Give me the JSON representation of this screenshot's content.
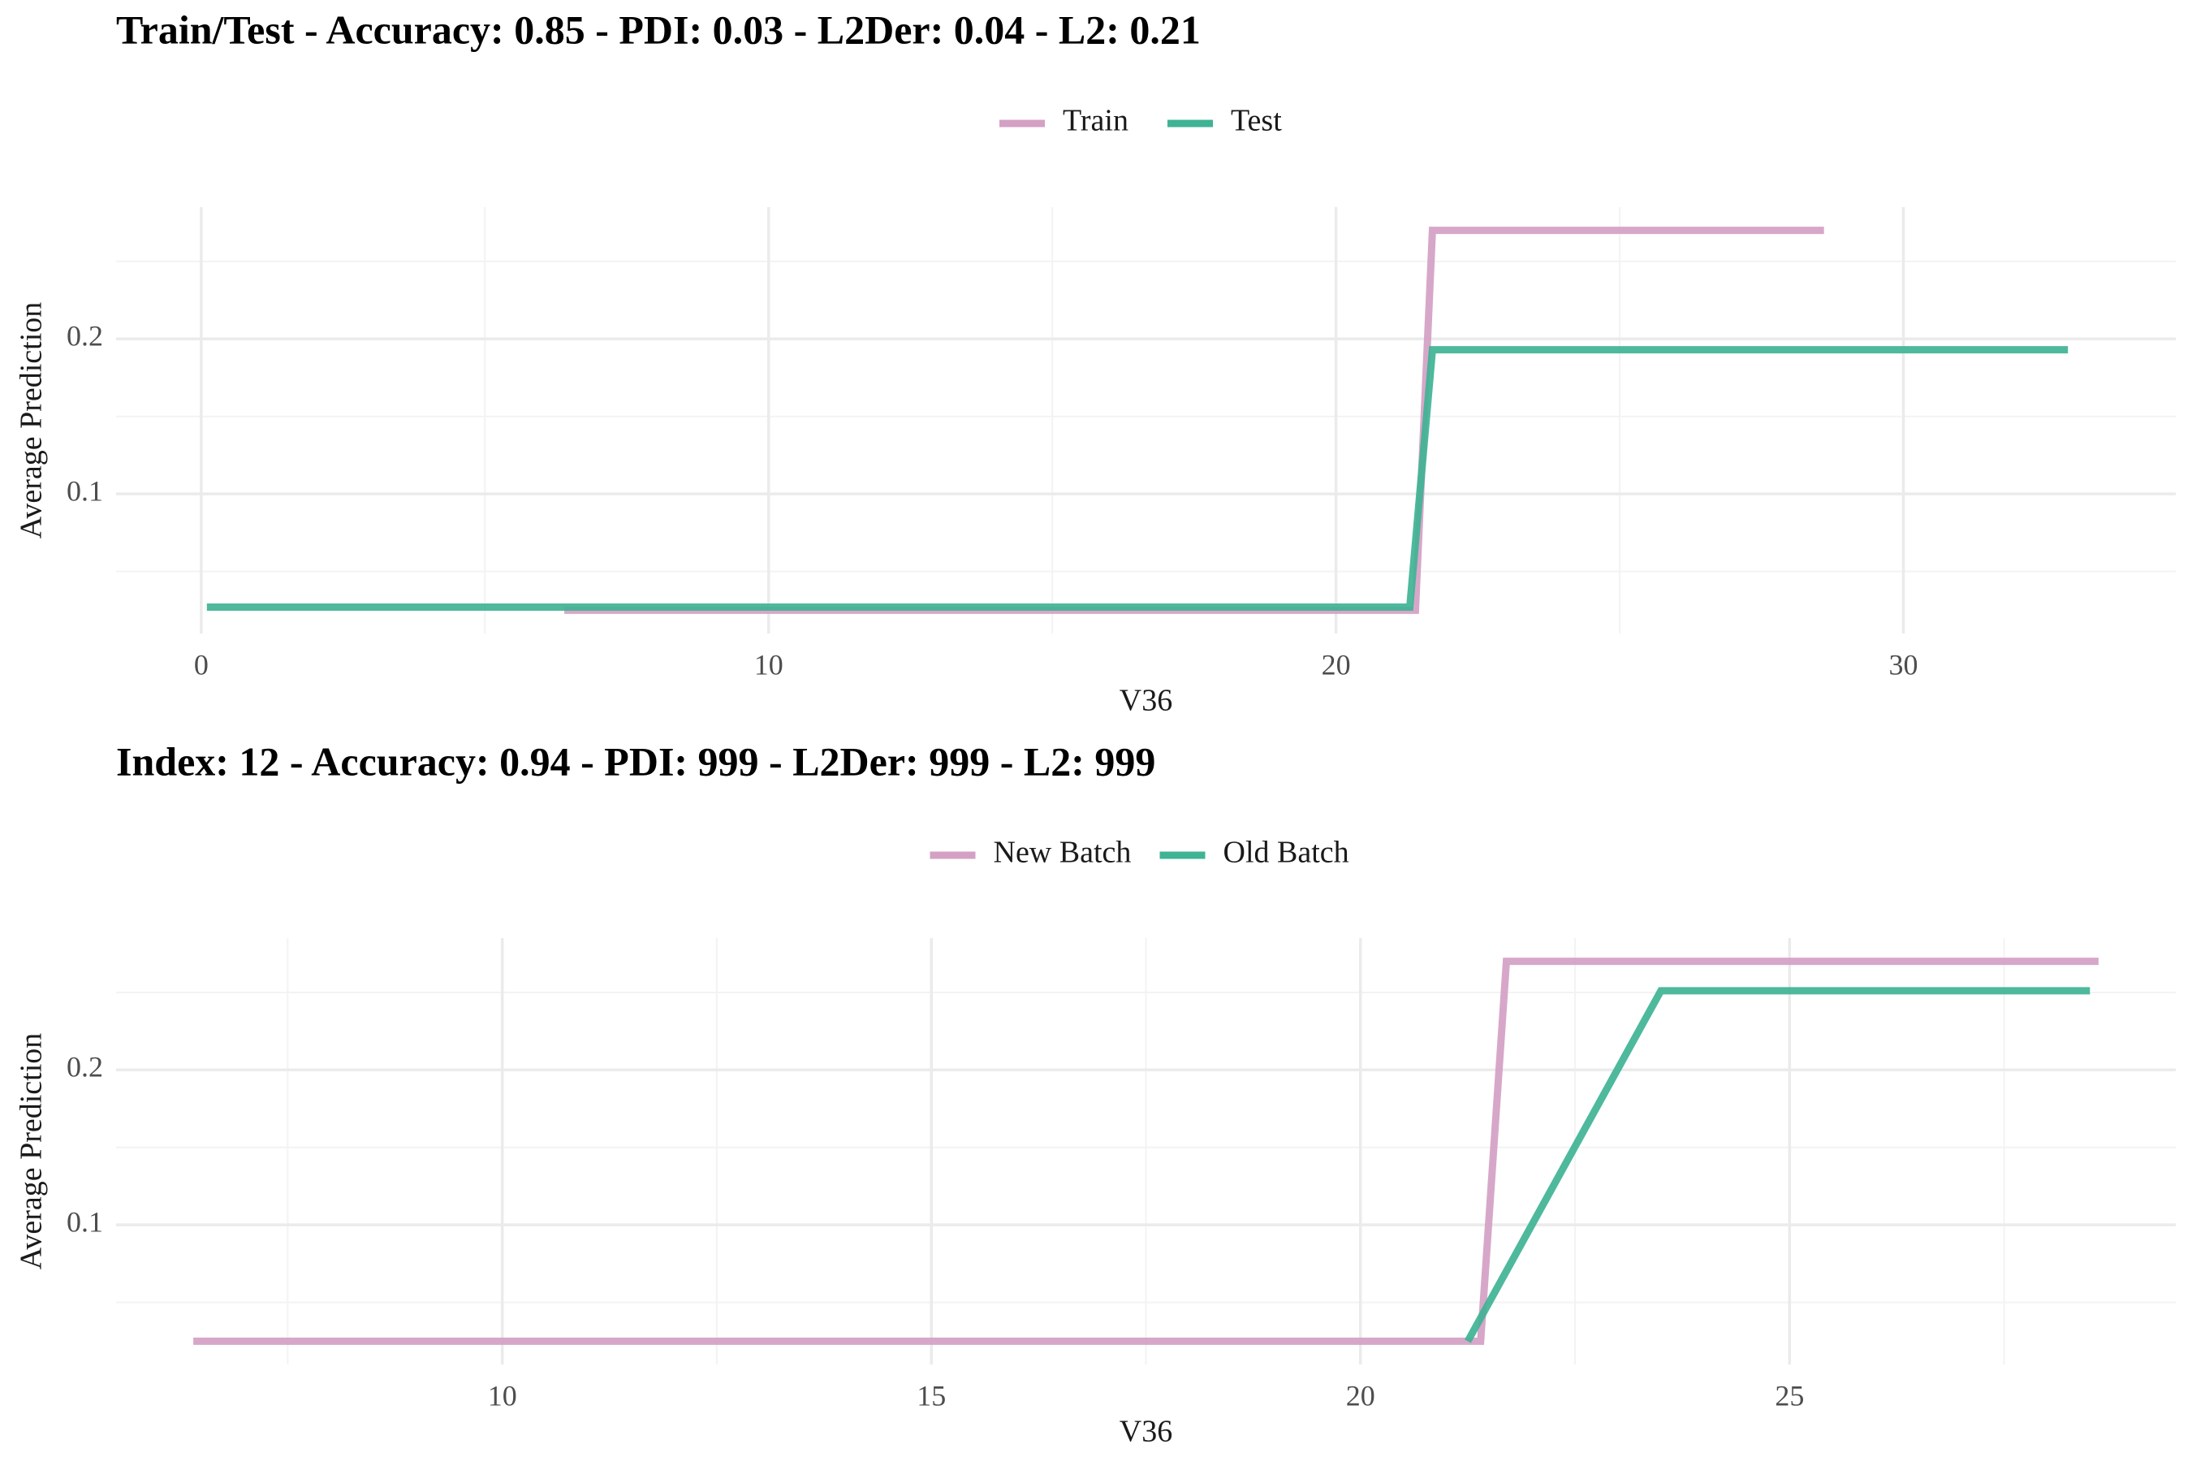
{
  "colors": {
    "series_a": "#d4a0c4",
    "series_b": "#3fb394",
    "grid_major": "#ebebeb",
    "grid_minor": "#f3f3f3"
  },
  "chart_data": [
    {
      "type": "line",
      "title": "Train/Test - Accuracy: 0.85 - PDI: 0.03 - L2Der: 0.04 - L2: 0.21",
      "xlabel": "V36",
      "ylabel": "Average Prediction",
      "xlim": [
        -1.5,
        34.8
      ],
      "ylim": [
        0.01,
        0.285
      ],
      "xticks": [
        0,
        10,
        20,
        30
      ],
      "xtick_labels": [
        "0",
        "10",
        "20",
        "30"
      ],
      "yticks": [
        0.1,
        0.2
      ],
      "ytick_labels": [
        "0.1",
        "0.2"
      ],
      "grid": true,
      "legend_position": "top",
      "series": [
        {
          "name": "Train",
          "color": "#d4a0c4",
          "x": [
            6.4,
            21.4,
            21.7,
            28.6
          ],
          "y": [
            0.025,
            0.025,
            0.27,
            0.27
          ]
        },
        {
          "name": "Test",
          "color": "#3fb394",
          "x": [
            0.1,
            21.3,
            21.7,
            32.9
          ],
          "y": [
            0.027,
            0.027,
            0.193,
            0.193
          ]
        }
      ]
    },
    {
      "type": "line",
      "title": "Index: 12 - Accuracy: 0.94 - PDI: 999 - L2Der: 999 - L2: 999",
      "xlabel": "V36",
      "ylabel": "Average Prediction",
      "xlim": [
        5.5,
        29.5
      ],
      "ylim": [
        0.01,
        0.285
      ],
      "xticks": [
        10,
        15,
        20,
        25
      ],
      "xtick_labels": [
        "10",
        "15",
        "20",
        "25"
      ],
      "yticks": [
        0.1,
        0.2
      ],
      "ytick_labels": [
        "0.1",
        "0.2"
      ],
      "grid": true,
      "legend_position": "top",
      "series": [
        {
          "name": "New Batch",
          "color": "#d4a0c4",
          "x": [
            6.4,
            21.4,
            21.7,
            28.6
          ],
          "y": [
            0.025,
            0.025,
            0.27,
            0.27
          ]
        },
        {
          "name": "Old Batch",
          "color": "#3fb394",
          "x": [
            21.25,
            23.5,
            28.5
          ],
          "y": [
            0.025,
            0.251,
            0.251
          ]
        }
      ]
    }
  ]
}
